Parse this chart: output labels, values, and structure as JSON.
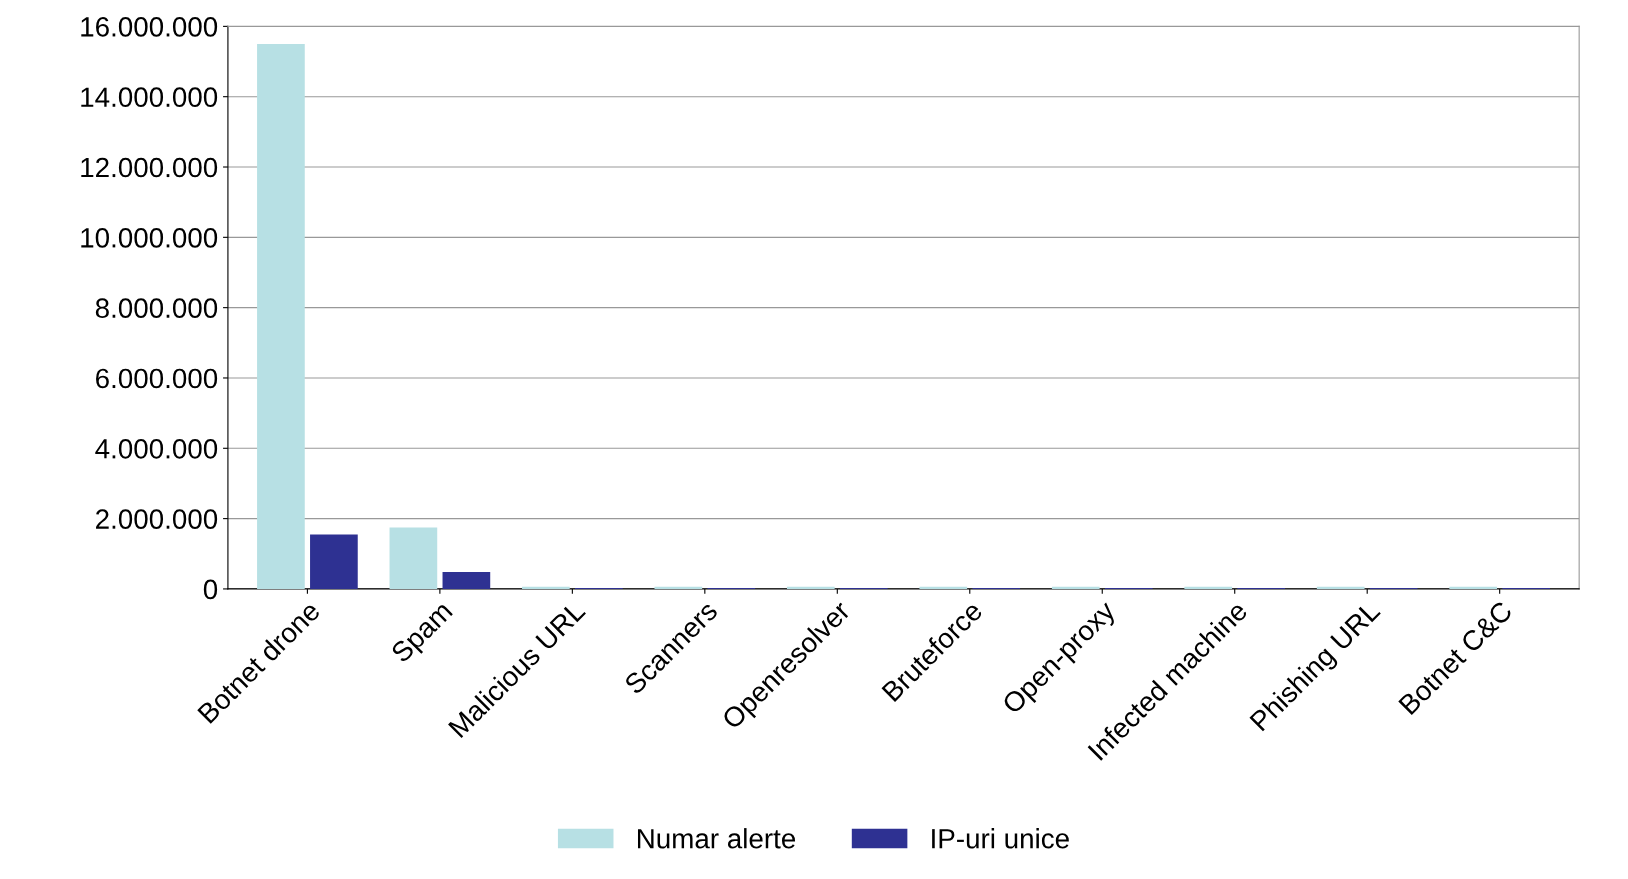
{
  "chart_data": {
    "type": "bar",
    "categories": [
      "Botnet drone",
      "Spam",
      "Malicious URL",
      "Scanners",
      "Openresolver",
      "Bruteforce",
      "Open-proxy",
      "Infected machine",
      "Phishing URL",
      "Botnet C&C"
    ],
    "series": [
      {
        "name": "Numar alerte",
        "color": "#b7e0e4",
        "values": [
          15500000,
          1750000,
          60000,
          60000,
          60000,
          60000,
          60000,
          60000,
          60000,
          60000
        ]
      },
      {
        "name": "IP-uri unice",
        "color": "#2e3192",
        "values": [
          1550000,
          480000,
          30000,
          30000,
          30000,
          30000,
          30000,
          30000,
          30000,
          30000
        ]
      }
    ],
    "ylim": [
      0,
      16000000
    ],
    "yticks": [
      {
        "value": 0,
        "label": "0"
      },
      {
        "value": 2000000,
        "label": "2.000.000"
      },
      {
        "value": 4000000,
        "label": "4.000.000"
      },
      {
        "value": 6000000,
        "label": "6.000.000"
      },
      {
        "value": 8000000,
        "label": "8.000.000"
      },
      {
        "value": 10000000,
        "label": "10.000.000"
      },
      {
        "value": 12000000,
        "label": "12.000.000"
      },
      {
        "value": 14000000,
        "label": "14.000.000"
      },
      {
        "value": 16000000,
        "label": "16.000.000"
      }
    ],
    "grid": "y",
    "legend": "bottom"
  }
}
